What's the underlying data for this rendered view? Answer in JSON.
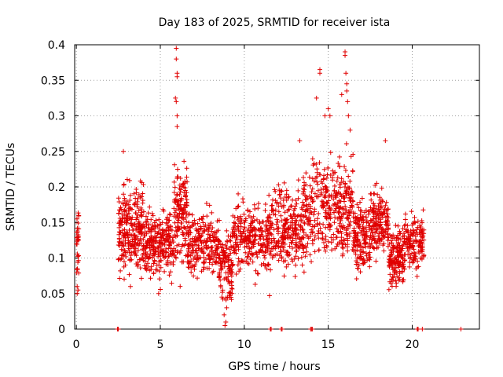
{
  "chart_data": {
    "type": "scatter",
    "title": "Day 183 of 2025, SRMTID for receiver ista",
    "xlabel": "GPS time / hours",
    "ylabel": "SRMTID / TECUs",
    "xlim": [
      -0.1,
      24
    ],
    "ylim": [
      0,
      0.4
    ],
    "x_ticks": [
      0,
      5,
      10,
      15,
      20
    ],
    "y_ticks": [
      0,
      0.05,
      0.1,
      0.15,
      0.2,
      0.25,
      0.3,
      0.35,
      0.4
    ],
    "y_tick_labels": [
      "0",
      "0.05",
      "0.1",
      "0.15",
      "0.2",
      "0.25",
      "0.3",
      "0.35",
      "0.4"
    ],
    "grid": true,
    "marker": "plus",
    "color": "#e00000",
    "series": [
      {
        "name": "SRMTID",
        "segments": [
          {
            "x_start": 0.0,
            "x_end": 0.15,
            "n": 30,
            "center": 0.12,
            "spread": 0.045
          },
          {
            "x_start": 2.5,
            "x_end": 4.0,
            "n": 260,
            "center": 0.14,
            "spread": 0.055
          },
          {
            "x_start": 4.0,
            "x_end": 5.8,
            "n": 260,
            "center": 0.12,
            "spread": 0.04
          },
          {
            "x_start": 5.8,
            "x_end": 6.6,
            "n": 140,
            "center": 0.16,
            "spread": 0.06
          },
          {
            "x_start": 6.6,
            "x_end": 8.5,
            "n": 230,
            "center": 0.12,
            "spread": 0.035
          },
          {
            "x_start": 8.5,
            "x_end": 9.3,
            "n": 120,
            "center": 0.09,
            "spread": 0.05
          },
          {
            "x_start": 9.3,
            "x_end": 11.5,
            "n": 260,
            "center": 0.13,
            "spread": 0.04
          },
          {
            "x_start": 11.5,
            "x_end": 13.5,
            "n": 260,
            "center": 0.14,
            "spread": 0.05
          },
          {
            "x_start": 13.5,
            "x_end": 16.5,
            "n": 380,
            "center": 0.17,
            "spread": 0.06
          },
          {
            "x_start": 16.5,
            "x_end": 17.5,
            "n": 150,
            "center": 0.13,
            "spread": 0.04
          },
          {
            "x_start": 17.5,
            "x_end": 18.6,
            "n": 170,
            "center": 0.15,
            "spread": 0.04
          },
          {
            "x_start": 18.6,
            "x_end": 19.5,
            "n": 150,
            "center": 0.1,
            "spread": 0.035
          },
          {
            "x_start": 19.5,
            "x_end": 20.7,
            "n": 150,
            "center": 0.12,
            "spread": 0.03
          }
        ],
        "outliers": [
          {
            "x": 5.95,
            "y": 0.395
          },
          {
            "x": 5.95,
            "y": 0.38
          },
          {
            "x": 6.0,
            "y": 0.36
          },
          {
            "x": 6.0,
            "y": 0.355
          },
          {
            "x": 5.9,
            "y": 0.325
          },
          {
            "x": 5.95,
            "y": 0.32
          },
          {
            "x": 6.0,
            "y": 0.3
          },
          {
            "x": 6.0,
            "y": 0.285
          },
          {
            "x": 14.3,
            "y": 0.325
          },
          {
            "x": 14.5,
            "y": 0.36
          },
          {
            "x": 14.5,
            "y": 0.365
          },
          {
            "x": 15.0,
            "y": 0.31
          },
          {
            "x": 15.1,
            "y": 0.3
          },
          {
            "x": 14.8,
            "y": 0.3
          },
          {
            "x": 16.0,
            "y": 0.39
          },
          {
            "x": 16.0,
            "y": 0.385
          },
          {
            "x": 16.05,
            "y": 0.36
          },
          {
            "x": 16.1,
            "y": 0.345
          },
          {
            "x": 16.1,
            "y": 0.335
          },
          {
            "x": 16.15,
            "y": 0.32
          },
          {
            "x": 15.8,
            "y": 0.33
          },
          {
            "x": 16.2,
            "y": 0.3
          },
          {
            "x": 16.3,
            "y": 0.28
          },
          {
            "x": 13.3,
            "y": 0.265
          },
          {
            "x": 18.4,
            "y": 0.265
          },
          {
            "x": 2.8,
            "y": 0.25
          },
          {
            "x": 8.85,
            "y": 0.005
          },
          {
            "x": 8.9,
            "y": 0.01
          },
          {
            "x": 8.8,
            "y": 0.02
          },
          {
            "x": 8.95,
            "y": 0.03
          },
          {
            "x": 0.05,
            "y": 0.05
          },
          {
            "x": 0.1,
            "y": 0.055
          },
          {
            "x": 0.05,
            "y": 0.06
          },
          {
            "x": 11.5,
            "y": 0.047
          },
          {
            "x": 4.9,
            "y": 0.05
          }
        ],
        "zero_points": [
          2.45,
          2.5,
          11.55,
          11.6,
          12.2,
          12.25,
          13.95,
          14.0,
          14.05,
          20.3,
          20.35,
          20.6,
          22.9
        ]
      }
    ]
  }
}
